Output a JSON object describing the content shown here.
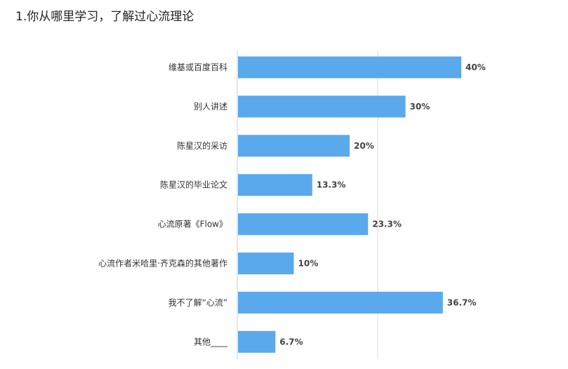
{
  "question": {
    "title": "1.你从哪里学习，了解过心流理论"
  },
  "colors": {
    "bar": "#5aa9ec",
    "axis": "#cccccc",
    "grid": "#d9d9d9",
    "label": "#333333",
    "value": "#444444"
  },
  "chart_data": {
    "type": "bar",
    "orientation": "horizontal",
    "title": "",
    "xlabel": "",
    "ylabel": "",
    "xlim": [
      0,
      80
    ],
    "categories": [
      "维基或百度百科",
      "别人讲述",
      "陈星汉的采访",
      "陈星汉的毕业论文",
      "心流原著《Flow》",
      "心流作者米哈里·齐克森的其他著作",
      "我不了解“心流”",
      "其他____"
    ],
    "values": [
      40,
      30,
      20,
      13.3,
      23.3,
      10,
      36.7,
      6.7
    ],
    "value_labels": [
      "40%",
      "30%",
      "20%",
      "13.3%",
      "23.3%",
      "10%",
      "36.7%",
      "6.7%"
    ],
    "unit": "%",
    "grid": true,
    "legend": "none"
  }
}
